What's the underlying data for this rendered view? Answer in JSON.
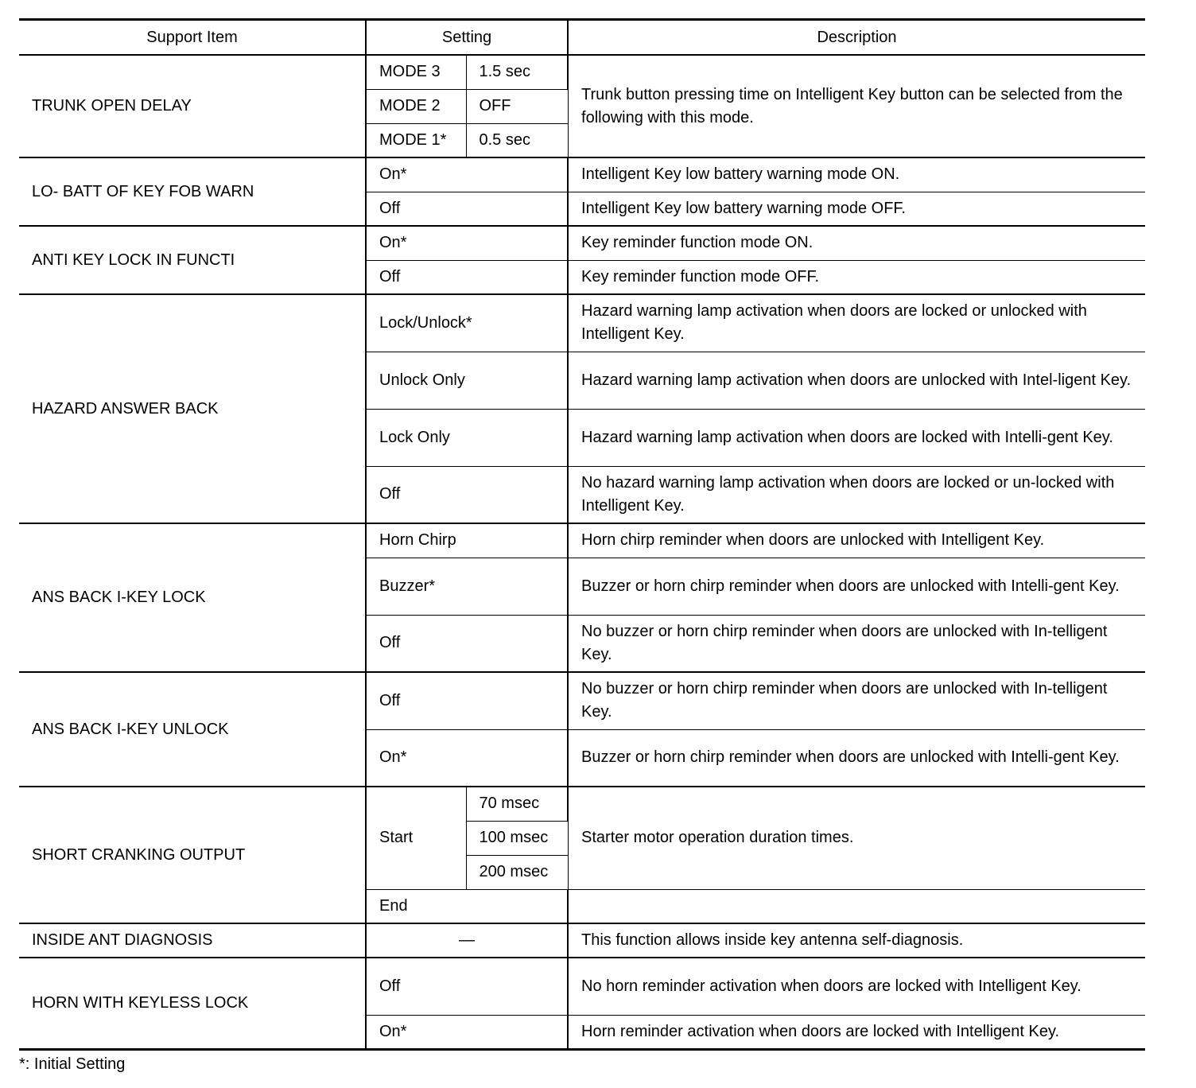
{
  "header": [
    "Support Item",
    "Setting",
    "Description"
  ],
  "trunk": {
    "item": "TRUNK OPEN DELAY",
    "modes": [
      "MODE 3",
      "MODE 2",
      "MODE 1*"
    ],
    "values": [
      "1.5 sec",
      "OFF",
      "0.5 sec"
    ],
    "desc": "Trunk button pressing time on Intelligent Key button can be selected from the following with this mode."
  },
  "lobatt": {
    "item": "LO- BATT OF KEY FOB WARN",
    "settings": [
      "On*",
      "Off"
    ],
    "descs": [
      "Intelligent Key low battery warning mode ON.",
      "Intelligent Key low battery warning mode OFF."
    ]
  },
  "antikey": {
    "item": "ANTI KEY LOCK IN FUNCTI",
    "settings": [
      "On*",
      "Off"
    ],
    "descs": [
      "Key reminder function mode ON.",
      "Key reminder function mode OFF."
    ]
  },
  "hazard": {
    "item": "HAZARD ANSWER BACK",
    "settings": [
      "Lock/Unlock*",
      "Unlock Only",
      "Lock Only",
      "Off"
    ],
    "descs": [
      "Hazard warning lamp activation when doors are locked or unlocked with Intelligent Key.",
      "Hazard warning lamp activation when doors are unlocked with Intel-ligent Key.",
      "Hazard warning lamp activation when doors are locked with Intelli-gent Key.",
      "No hazard warning lamp activation when doors are locked or un-locked with Intelligent Key."
    ]
  },
  "anslock": {
    "item": "ANS BACK I-KEY LOCK",
    "settings": [
      "Horn Chirp",
      "Buzzer*",
      "Off"
    ],
    "descs": [
      "Horn chirp reminder when doors are unlocked with Intelligent Key.",
      "Buzzer or horn chirp reminder when doors are unlocked with Intelli-gent Key.",
      "No buzzer or horn chirp reminder when doors are unlocked with In-telligent Key."
    ]
  },
  "ansunlock": {
    "item": "ANS BACK I-KEY UNLOCK",
    "settings": [
      "Off",
      "On*"
    ],
    "descs": [
      "No buzzer or horn chirp reminder when doors are unlocked with In-telligent Key.",
      "Buzzer or horn chirp reminder when doors are unlocked with Intelli-gent Key."
    ]
  },
  "crank": {
    "item": "SHORT CRANKING OUTPUT",
    "start": "Start",
    "values": [
      "70 msec",
      "100 msec",
      "200 msec"
    ],
    "end": "End",
    "desc": "Starter motor operation duration times."
  },
  "inside": {
    "item": "INSIDE ANT DIAGNOSIS",
    "setting": "—",
    "desc": "This function allows inside key antenna self-diagnosis."
  },
  "horn": {
    "item": "HORN WITH KEYLESS LOCK",
    "settings": [
      "Off",
      "On*"
    ],
    "descs": [
      "No horn reminder activation when doors are locked with Intelligent Key.",
      "Horn reminder activation when doors are locked with Intelligent Key."
    ]
  },
  "footnote": "*: Initial Setting"
}
